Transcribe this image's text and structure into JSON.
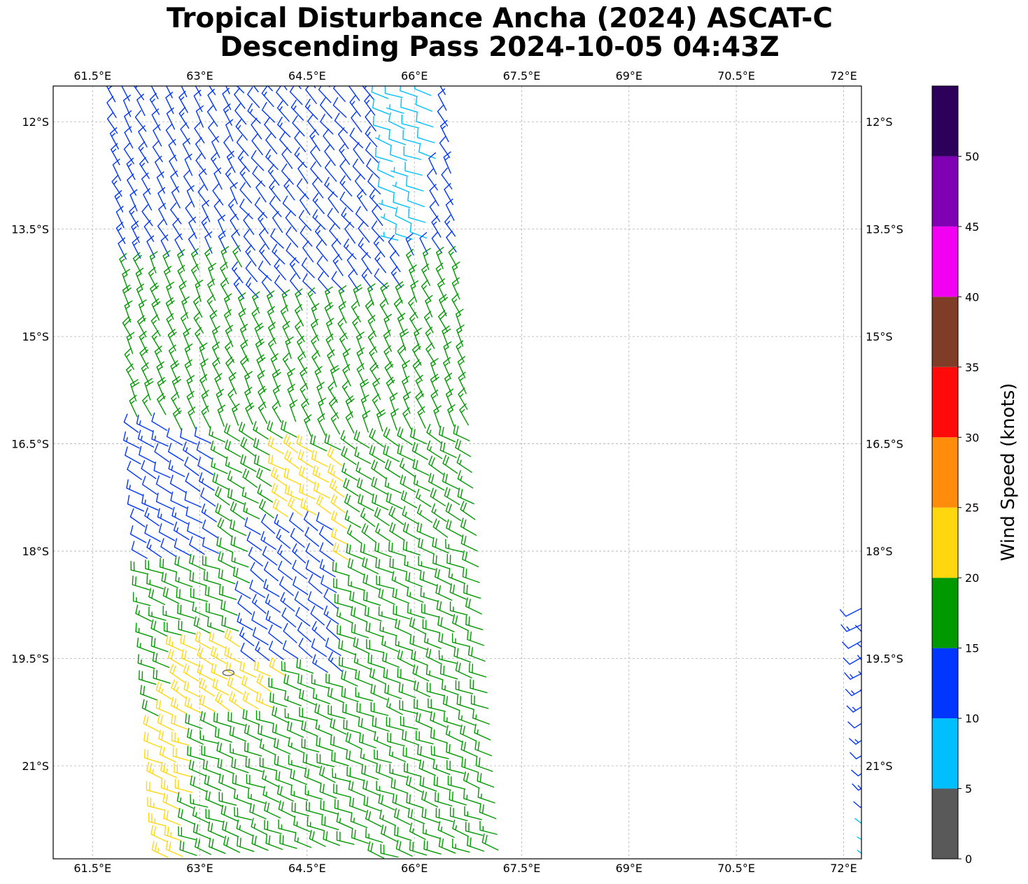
{
  "title": {
    "line1": "Tropical Disturbance Ancha (2024) ASCAT-C",
    "line2": "Descending Pass 2024-10-05 04:43Z"
  },
  "map": {
    "lon_range": [
      60.95,
      72.25
    ],
    "lat_range": [
      -22.3,
      -11.5
    ],
    "lon_ticks": [
      {
        "value": 61.5,
        "label": "61.5°E"
      },
      {
        "value": 63.0,
        "label": "63°E"
      },
      {
        "value": 64.5,
        "label": "64.5°E"
      },
      {
        "value": 66.0,
        "label": "66°E"
      },
      {
        "value": 67.5,
        "label": "67.5°E"
      },
      {
        "value": 69.0,
        "label": "69°E"
      },
      {
        "value": 70.5,
        "label": "70.5°E"
      },
      {
        "value": 72.0,
        "label": "72°E"
      }
    ],
    "lat_ticks": [
      {
        "value": -12.0,
        "label": "12°S"
      },
      {
        "value": -13.5,
        "label": "13.5°S"
      },
      {
        "value": -15.0,
        "label": "15°S"
      },
      {
        "value": -16.5,
        "label": "16.5°S"
      },
      {
        "value": -18.0,
        "label": "18°S"
      },
      {
        "value": -19.5,
        "label": "19.5°S"
      },
      {
        "value": -21.0,
        "label": "21°S"
      }
    ],
    "grid": true,
    "center_marker_icon": "circulation-center-icon"
  },
  "colorbar": {
    "label": "Wind Speed (knots)",
    "ticks": [
      "0",
      "5",
      "10",
      "15",
      "20",
      "25",
      "30",
      "35",
      "40",
      "45",
      "50"
    ],
    "bins": [
      {
        "min": 0,
        "max": 5,
        "color": "#595959"
      },
      {
        "min": 5,
        "max": 10,
        "color": "#00bfff"
      },
      {
        "min": 10,
        "max": 15,
        "color": "#0036ff"
      },
      {
        "min": 15,
        "max": 20,
        "color": "#009900"
      },
      {
        "min": 20,
        "max": 25,
        "color": "#ffd70f"
      },
      {
        "min": 25,
        "max": 30,
        "color": "#ff8c0a"
      },
      {
        "min": 30,
        "max": 35,
        "color": "#ff0a0a"
      },
      {
        "min": 35,
        "max": 40,
        "color": "#7f3d28"
      },
      {
        "min": 40,
        "max": 45,
        "color": "#f200f2"
      },
      {
        "min": 45,
        "max": 50,
        "color": "#8000b3"
      },
      {
        "min": 50,
        "max": 55,
        "color": "#2d005a"
      }
    ]
  },
  "chart_data": {
    "type": "wind-barbs",
    "swaths": [
      {
        "name": "western swath",
        "edge_north": [
          61.8,
          -11.5
        ],
        "edge_south": [
          60.95,
          -22.3
        ],
        "track_dir": [
          0.07,
          -1.0
        ],
        "cross_dir": [
          1.0,
          0.07
        ],
        "width_deg": 4.6,
        "regions": [
          {
            "lat_min": -14.0,
            "lat_max": -11.5,
            "speed": 12,
            "dir": 330
          },
          {
            "lat_min": -16.4,
            "lat_max": -14.0,
            "speed": 17,
            "dir": 335
          },
          {
            "lat_min": -18.0,
            "lat_max": -16.4,
            "speed": 18,
            "dir": 300
          },
          {
            "lat_min": -22.3,
            "lat_max": -18.0,
            "speed": 18,
            "dir": 290
          }
        ],
        "patches": [
          {
            "lon_min": 60.95,
            "lon_max": 63.3,
            "lat_min": -18.1,
            "lat_max": -16.3,
            "speed": 12,
            "dir": 300
          },
          {
            "lon_min": 63.6,
            "lon_max": 65.9,
            "lat_min": -14.5,
            "lat_max": -11.5,
            "speed": 12,
            "dir": 320
          },
          {
            "lon_min": 65.6,
            "lon_max": 66.3,
            "lat_min": -13.8,
            "lat_max": -11.5,
            "speed": 8,
            "dir": 290
          },
          {
            "lon_min": 64.1,
            "lon_max": 65.1,
            "lat_min": -18.2,
            "lat_max": -16.6,
            "speed": 22,
            "dir": 300
          },
          {
            "lon_min": 62.6,
            "lon_max": 64.2,
            "lat_min": -20.4,
            "lat_max": -19.2,
            "speed": 22,
            "dir": 300
          },
          {
            "lon_min": 63.7,
            "lon_max": 65.0,
            "lat_min": -19.7,
            "lat_max": -17.6,
            "speed": 12,
            "dir": 305
          },
          {
            "lon_min": 60.95,
            "lon_max": 62.9,
            "lat_min": -22.3,
            "lat_max": -20.4,
            "speed": 22,
            "dir": 290
          },
          {
            "lon_min": 60.95,
            "lon_max": 61.4,
            "lat_min": -20.4,
            "lat_max": -19.5,
            "speed": 22,
            "dir": 290
          }
        ]
      },
      {
        "name": "eastern swath",
        "edge_north": [
          72.25,
          -18.8
        ],
        "edge_south": [
          71.6,
          -22.3
        ],
        "track_dir": [
          0.07,
          -1.0
        ],
        "cross_dir": [
          1.0,
          0.07
        ],
        "width_deg": 0.7,
        "regions": [
          {
            "lat_min": -21.5,
            "lat_max": -18.8,
            "speed": 12,
            "dir": 240
          },
          {
            "lat_min": -22.3,
            "lat_max": -21.5,
            "speed": 8,
            "dir": 230
          }
        ],
        "patches": []
      }
    ],
    "low_center": [
      63.4,
      -19.7
    ]
  }
}
